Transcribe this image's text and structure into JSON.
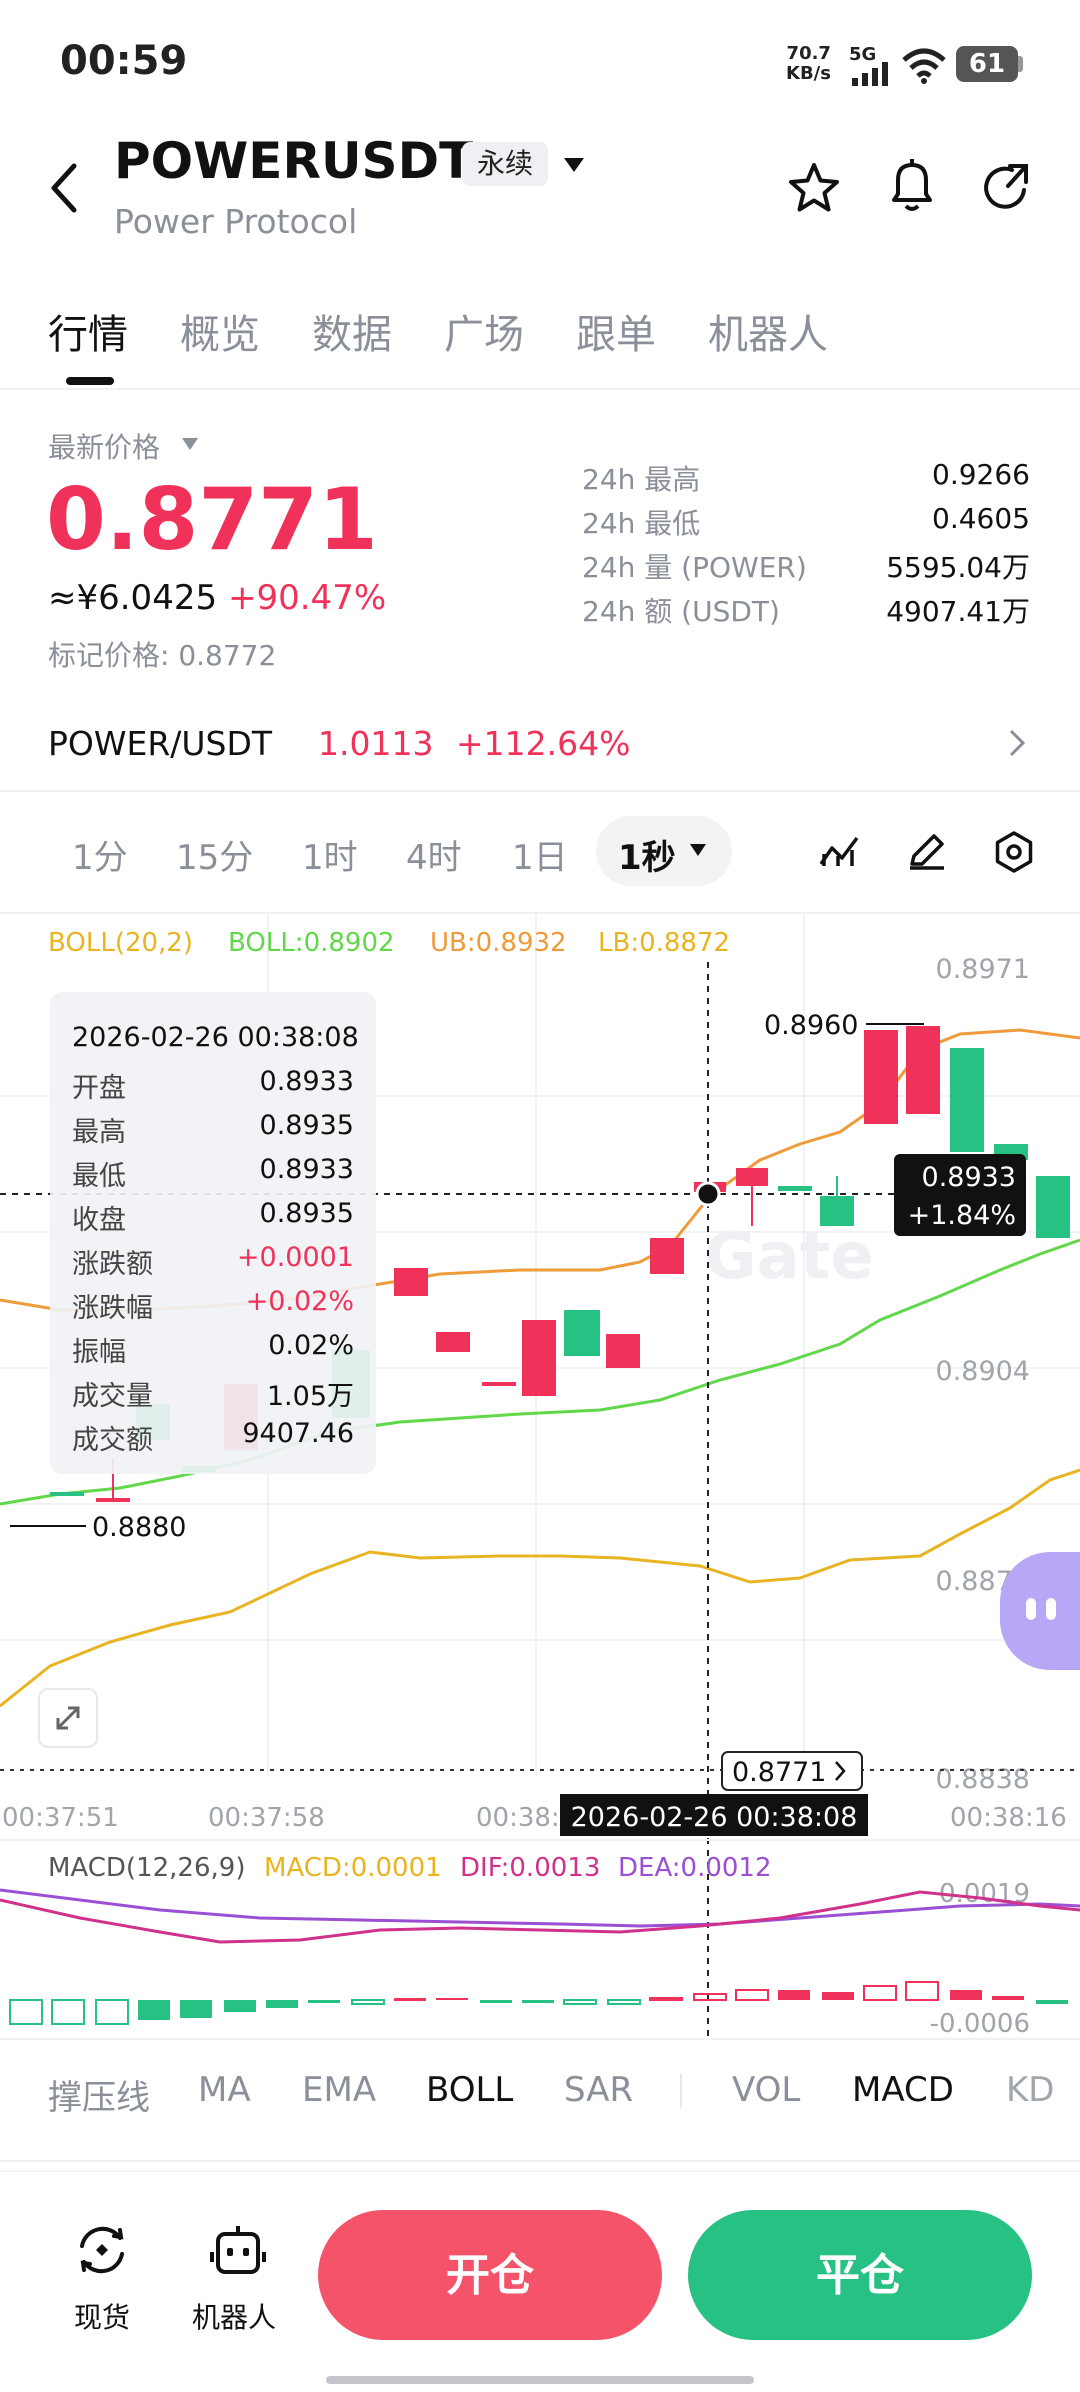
{
  "status_bar": {
    "time": "00:59",
    "speed_top": "70.7",
    "speed_bottom": "KB/s",
    "network": "5G",
    "battery": "61"
  },
  "header": {
    "title": "POWERUSDT",
    "tag": "永续",
    "subtitle": "Power Protocol"
  },
  "tabs": [
    {
      "label": "行情"
    },
    {
      "label": "概览"
    },
    {
      "label": "数据"
    },
    {
      "label": "广场"
    },
    {
      "label": "跟单"
    },
    {
      "label": "机器人"
    }
  ],
  "price": {
    "latest_label": "最新价格",
    "last": "0.8771",
    "cny": "≈¥6.0425",
    "change_pct": "+90.47%",
    "mark": "标记价格: 0.8772",
    "color_up": "#f0325a",
    "color_down": "#27c184"
  },
  "stats": [
    {
      "label": "24h  最高",
      "value": "0.9266"
    },
    {
      "label": "24h  最低",
      "value": "0.4605"
    },
    {
      "label": "24h  量 (POWER)",
      "value": "5595.04万"
    },
    {
      "label": "24h  额 (USDT)",
      "value": "4907.41万"
    }
  ],
  "spot": {
    "pair": "POWER/USDT",
    "price": "1.0113",
    "pct": "+112.64%"
  },
  "intervals": [
    {
      "label": "1分"
    },
    {
      "label": "15分"
    },
    {
      "label": "1时"
    },
    {
      "label": "4时"
    },
    {
      "label": "1日"
    }
  ],
  "interval_active": "1秒",
  "chart": {
    "boll": {
      "name": "BOLL(20,2)",
      "mid": "BOLL:0.8902",
      "ub": "UB:0.8932",
      "lb": "LB:0.8872"
    },
    "y_labels": [
      "0.8971",
      "0.8904",
      "0.8871",
      "0.8838"
    ],
    "x_labels": [
      "00:37:51",
      "00:37:58",
      "00:38:",
      "00:38:16"
    ],
    "crosshair_time": "2026-02-26 00:38:08",
    "crosshair_price": "0.8933",
    "crosshair_pct": "+1.84%",
    "last_price_tag": "0.8771",
    "max_label": "0.8960",
    "min_label": "0.8880",
    "watermark": "Gate",
    "tooltip": [
      {
        "label": "",
        "value": "2026-02-26 00:38:08"
      },
      {
        "label": "开盘",
        "value": "0.8933"
      },
      {
        "label": "最高",
        "value": "0.8935"
      },
      {
        "label": "最低",
        "value": "0.8933"
      },
      {
        "label": "收盘",
        "value": "0.8935"
      },
      {
        "label": "涨跌额",
        "value": "+0.0001"
      },
      {
        "label": "涨跌幅",
        "value": "+0.02%"
      },
      {
        "label": "振幅",
        "value": "0.02%"
      },
      {
        "label": "成交量",
        "value": "1.05万"
      },
      {
        "label": "成交额",
        "value": "9407.46"
      }
    ],
    "macd": {
      "name": "MACD(12,26,9)",
      "macd": "MACD:0.0001",
      "dif": "DIF:0.0013",
      "dea": "DEA:0.0012",
      "y_top": "0.0019",
      "y_bottom": "-0.0006"
    }
  },
  "chart_data": {
    "type": "candlestick",
    "y_axis_ticks": [
      0.8971,
      0.8904,
      0.8871,
      0.8838
    ],
    "colors": {
      "up": "#f0325a",
      "down": "#27c184",
      "boll_mid": "#60d84a",
      "boll_ub": "#ef9b3a",
      "boll_lb": "#e8b421",
      "dif": "#d0318a",
      "dea": "#9b4fd2"
    }
  },
  "indicator_tabs": [
    {
      "label": "撑压线"
    },
    {
      "label": "MA"
    },
    {
      "label": "EMA"
    },
    {
      "label": "BOLL"
    },
    {
      "label": "SAR"
    },
    {
      "label": "VOL"
    },
    {
      "label": "MACD"
    },
    {
      "label": "KD"
    }
  ],
  "bottom": {
    "spot_label": "现货",
    "bot_label": "机器人",
    "open_label": "开仓",
    "close_label": "平仓"
  }
}
